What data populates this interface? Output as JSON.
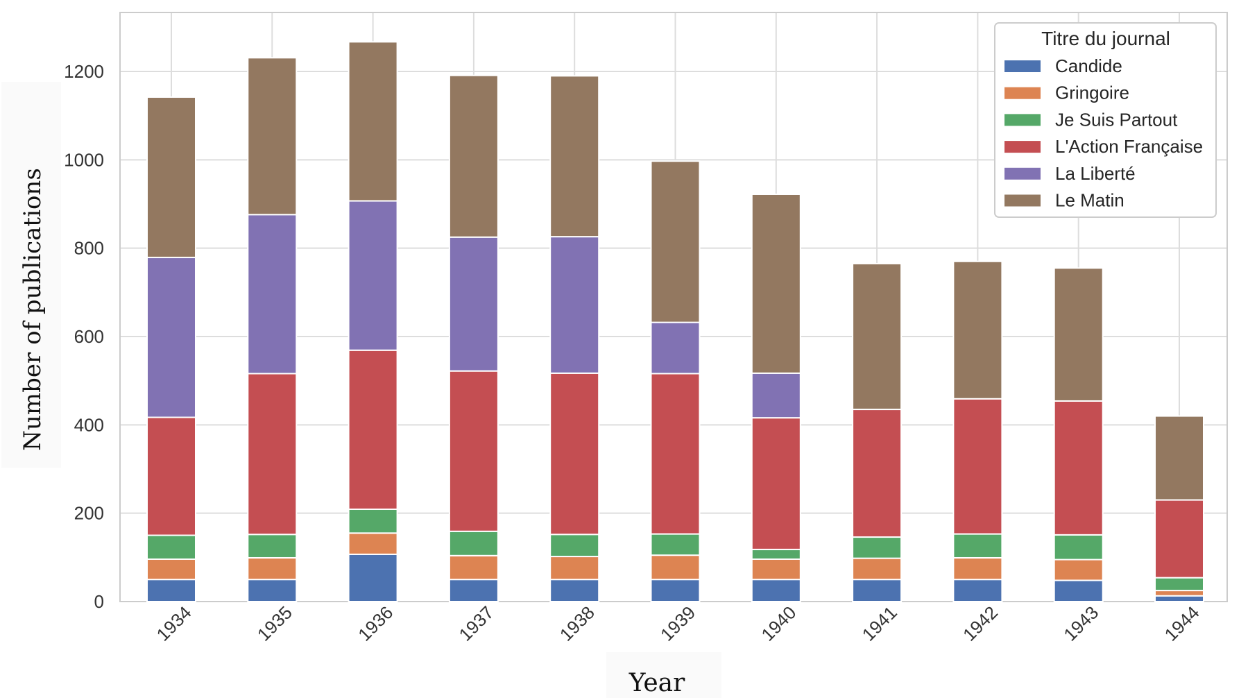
{
  "chart_data": {
    "type": "bar",
    "stacked": true,
    "title": "",
    "xlabel": "Year",
    "ylabel": "Number of publications",
    "ylim": [
      0,
      1330
    ],
    "yticks": [
      0,
      200,
      400,
      600,
      800,
      1000,
      1200
    ],
    "grid": true,
    "legend": {
      "title": "Titre du journal",
      "position": "top-right"
    },
    "categories": [
      "1934",
      "1935",
      "1936",
      "1937",
      "1938",
      "1939",
      "1940",
      "1941",
      "1942",
      "1943",
      "1944"
    ],
    "series": [
      {
        "name": "Candide",
        "color": "#4c72b0",
        "values": [
          50,
          50,
          107,
          50,
          50,
          50,
          50,
          50,
          50,
          48,
          13
        ]
      },
      {
        "name": "Gringoire",
        "color": "#dd8452",
        "values": [
          46,
          49,
          48,
          54,
          52,
          55,
          46,
          48,
          49,
          47,
          12
        ]
      },
      {
        "name": "Je Suis Partout",
        "color": "#55a868",
        "values": [
          54,
          53,
          54,
          55,
          50,
          48,
          22,
          48,
          54,
          56,
          29
        ]
      },
      {
        "name": "L'Action Française",
        "color": "#c44e52",
        "values": [
          267,
          364,
          360,
          363,
          365,
          363,
          298,
          289,
          306,
          303,
          176
        ]
      },
      {
        "name": "La Liberté",
        "color": "#8172b3",
        "values": [
          362,
          360,
          338,
          303,
          309,
          116,
          101,
          0,
          0,
          0,
          0
        ]
      },
      {
        "name": "Le Matin",
        "color": "#937860",
        "values": [
          363,
          355,
          360,
          366,
          364,
          365,
          405,
          330,
          311,
          301,
          190
        ]
      }
    ]
  }
}
